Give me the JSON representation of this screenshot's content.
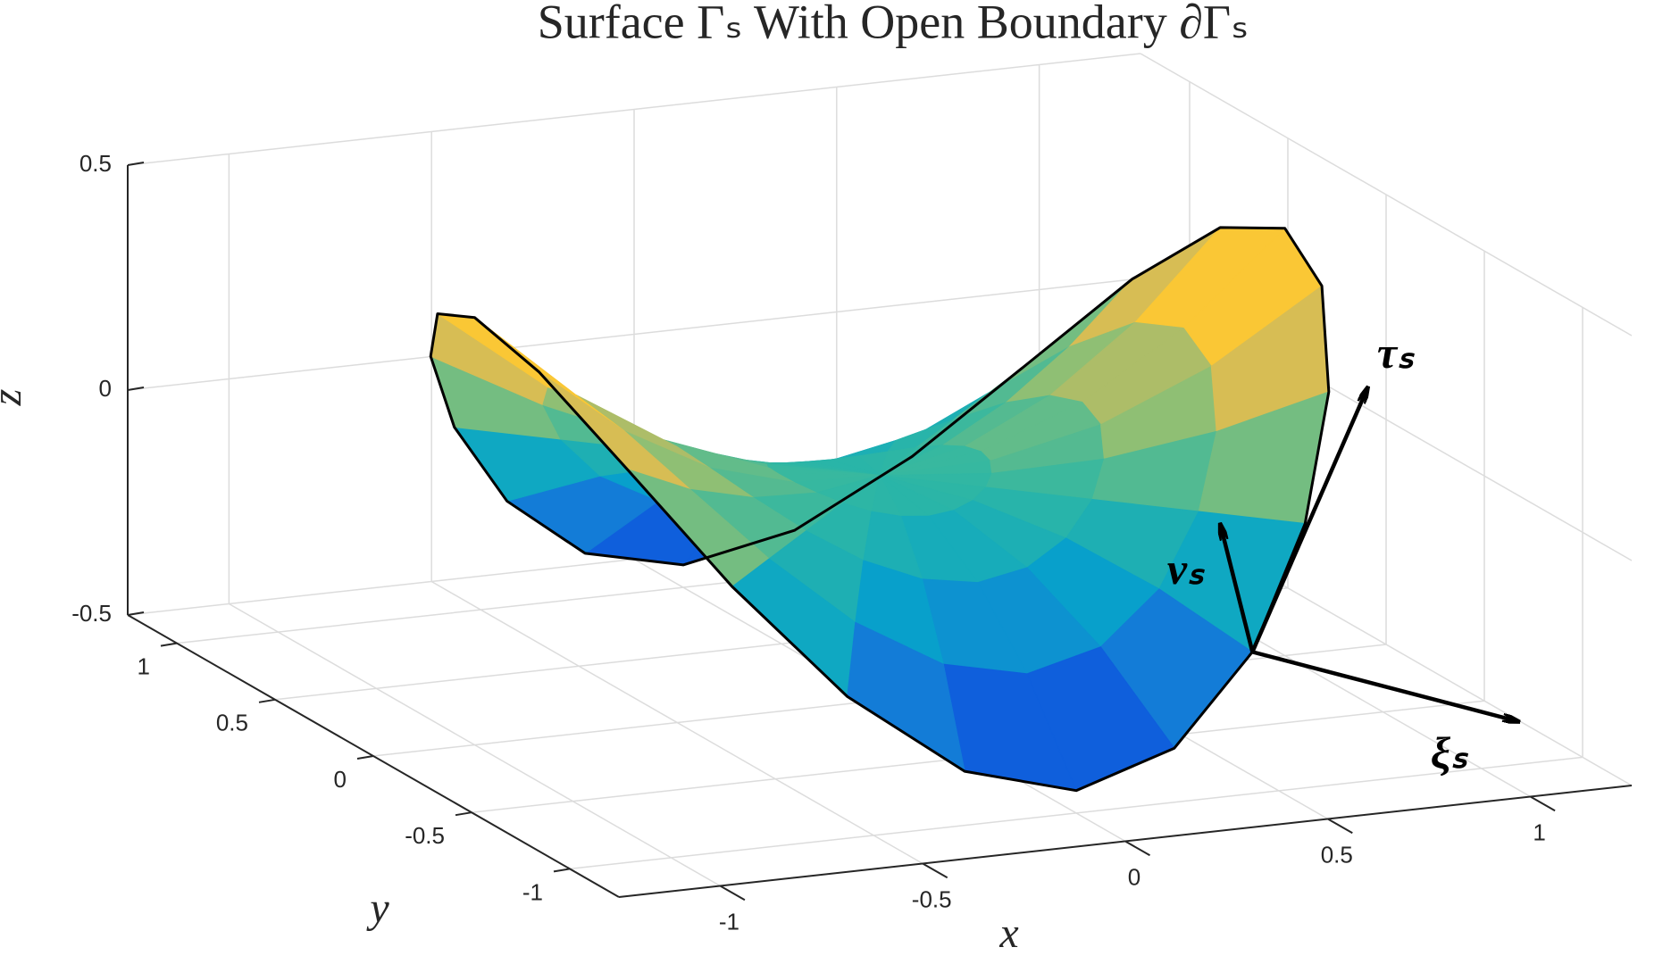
{
  "chart_data": {
    "type": "surface",
    "title": "Surface Γₛ With Open Boundary ∂Γₛ",
    "xlabel": "x",
    "ylabel": "y",
    "zlabel": "z",
    "xlim": [
      -1.25,
      1.25
    ],
    "ylim": [
      -1.25,
      1.25
    ],
    "zlim": [
      -0.5,
      0.5
    ],
    "xticks": [
      -1,
      -0.5,
      0,
      0.5,
      1
    ],
    "yticks": [
      -1,
      -0.5,
      0,
      0.5,
      1
    ],
    "zticks": [
      -0.5,
      0,
      0.5
    ],
    "grid": true,
    "colormap": "parula",
    "edge_color": "#000000",
    "r": [
      0,
      0.25,
      0.5,
      0.75,
      1
    ],
    "theta": [
      0,
      15,
      30,
      45,
      60,
      75,
      90,
      105,
      120,
      135,
      150,
      165,
      180,
      195,
      210,
      225,
      240,
      255,
      270,
      285,
      300,
      315,
      330,
      345
    ],
    "z": [
      [
        0,
        0,
        0,
        0,
        0,
        0,
        0,
        0,
        0,
        0,
        0,
        0,
        0,
        0,
        0,
        0,
        0,
        0,
        0,
        0,
        0,
        0,
        0,
        0
      ],
      [
        0.028,
        0.024,
        0.014,
        0,
        -0.014,
        -0.024,
        -0.028,
        -0.024,
        -0.014,
        0,
        0.014,
        0.024,
        0.028,
        0.024,
        0.014,
        0,
        -0.014,
        -0.024,
        -0.028,
        -0.024,
        -0.014,
        0,
        0.014,
        0.024
      ],
      [
        0.113,
        0.097,
        0.056,
        0,
        -0.056,
        -0.097,
        -0.113,
        -0.097,
        -0.056,
        0,
        0.056,
        0.097,
        0.113,
        0.097,
        0.056,
        0,
        -0.056,
        -0.097,
        -0.113,
        -0.097,
        -0.056,
        0,
        0.056,
        0.097
      ],
      [
        0.253,
        0.219,
        0.127,
        0,
        -0.127,
        -0.219,
        -0.253,
        -0.219,
        -0.127,
        0,
        0.127,
        0.219,
        0.253,
        0.219,
        0.127,
        0,
        -0.127,
        -0.219,
        -0.253,
        -0.219,
        -0.127,
        0,
        0.127,
        0.219
      ],
      [
        0.45,
        0.39,
        0.225,
        0,
        -0.225,
        -0.39,
        -0.45,
        -0.39,
        -0.225,
        0,
        0.225,
        0.39,
        0.45,
        0.39,
        0.225,
        0,
        -0.225,
        -0.39,
        -0.45,
        -0.39,
        -0.225,
        0,
        0.225,
        0.39
      ]
    ],
    "annotations": [
      {
        "text": "τₛ"
      },
      {
        "text": "νₛ"
      },
      {
        "text": "ξₛ"
      }
    ]
  }
}
